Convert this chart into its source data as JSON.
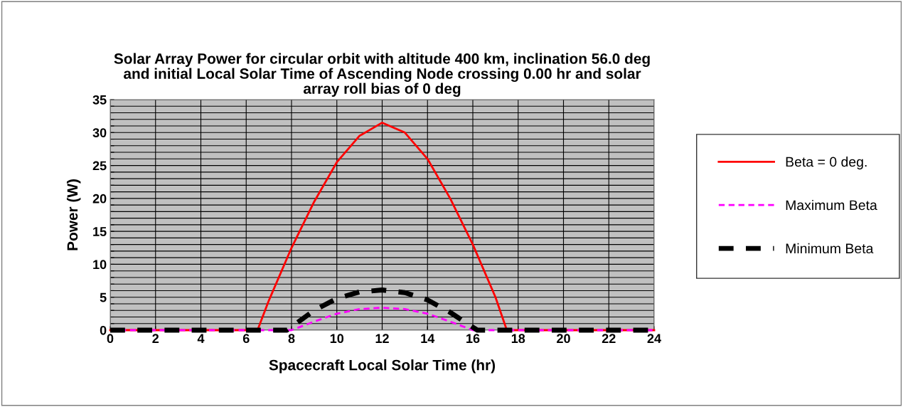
{
  "chart_data": {
    "type": "line",
    "title": "Solar Array Power for circular orbit with altitude 400 km, inclination 56.0 deg\nand initial Local Solar Time of Ascending Node crossing 0.00 hr and solar\narray roll bias of 0 deg",
    "xlabel": "Spacecraft Local Solar Time (hr)",
    "ylabel": "Power (W)",
    "xlim": [
      0,
      24
    ],
    "xticks": [
      0,
      2,
      4,
      6,
      8,
      10,
      12,
      14,
      16,
      18,
      20,
      22,
      24
    ],
    "ylim": [
      0,
      35
    ],
    "yticks": [
      0,
      {
        "value": 1,
        "label": null
      },
      {
        "value": 2,
        "label": null
      },
      {
        "value": 3,
        "label": null
      },
      {
        "value": 4,
        "label": null
      },
      5,
      {
        "value": 6,
        "label": null
      },
      {
        "value": 7,
        "label": null
      },
      {
        "value": 8,
        "label": null
      },
      {
        "value": 9,
        "label": null
      },
      10,
      {
        "value": 11,
        "label": null
      },
      {
        "value": 12,
        "label": null
      },
      {
        "value": 13,
        "label": null
      },
      {
        "value": 14,
        "label": null
      },
      15,
      {
        "value": 16,
        "label": null
      },
      {
        "value": 17,
        "label": null
      },
      {
        "value": 18,
        "label": null
      },
      {
        "value": 19,
        "label": null
      },
      20,
      {
        "value": 21,
        "label": null
      },
      {
        "value": 22,
        "label": null
      },
      {
        "value": 23,
        "label": null
      },
      {
        "value": 24,
        "label": null
      },
      25,
      {
        "value": 26,
        "label": null
      },
      {
        "value": 27,
        "label": null
      },
      {
        "value": 28,
        "label": null
      },
      {
        "value": 29,
        "label": null
      },
      30,
      {
        "value": 31,
        "label": null
      },
      {
        "value": 32,
        "label": null
      },
      {
        "value": 33,
        "label": null
      },
      {
        "value": 34,
        "label": null
      },
      35
    ],
    "grid": true,
    "legend": "right",
    "marker": "none",
    "series": [
      {
        "name": "Beta = 0 deg.",
        "color": "#ff0000",
        "line_style": "solid",
        "x": [
          0,
          2,
          4,
          6,
          6.5,
          7,
          8,
          9,
          10,
          11,
          12,
          13,
          14,
          15,
          16,
          17,
          17.5,
          18,
          20,
          22,
          24
        ],
        "values": [
          0,
          0,
          0,
          0,
          0,
          4.5,
          12.5,
          19.5,
          25.5,
          29.5,
          31.5,
          30,
          26,
          20,
          13,
          5,
          0,
          0,
          0,
          0,
          0
        ]
      },
      {
        "name": "Maximum Beta",
        "color": "#ff00ff",
        "line_style": "dashed",
        "x": [
          0,
          2,
          4,
          6,
          8,
          9,
          10,
          11,
          12,
          13,
          14,
          15,
          16,
          18,
          20,
          22,
          24
        ],
        "values": [
          0,
          0,
          0,
          0,
          0,
          1.3,
          2.5,
          3.2,
          3.4,
          3.2,
          2.5,
          1.3,
          0,
          0,
          0,
          0,
          0
        ]
      },
      {
        "name": "Minimum Beta",
        "color": "#000000",
        "line_style": "dashed",
        "x": [
          0,
          2,
          4,
          6,
          7.8,
          8,
          9,
          10,
          11,
          12,
          13,
          14,
          15,
          16.2,
          18,
          20,
          22,
          24
        ],
        "values": [
          0,
          0,
          0,
          0,
          0,
          0.5,
          3,
          4.8,
          5.8,
          6.1,
          5.7,
          4.6,
          2.7,
          0,
          0,
          0,
          0,
          0
        ]
      }
    ]
  }
}
